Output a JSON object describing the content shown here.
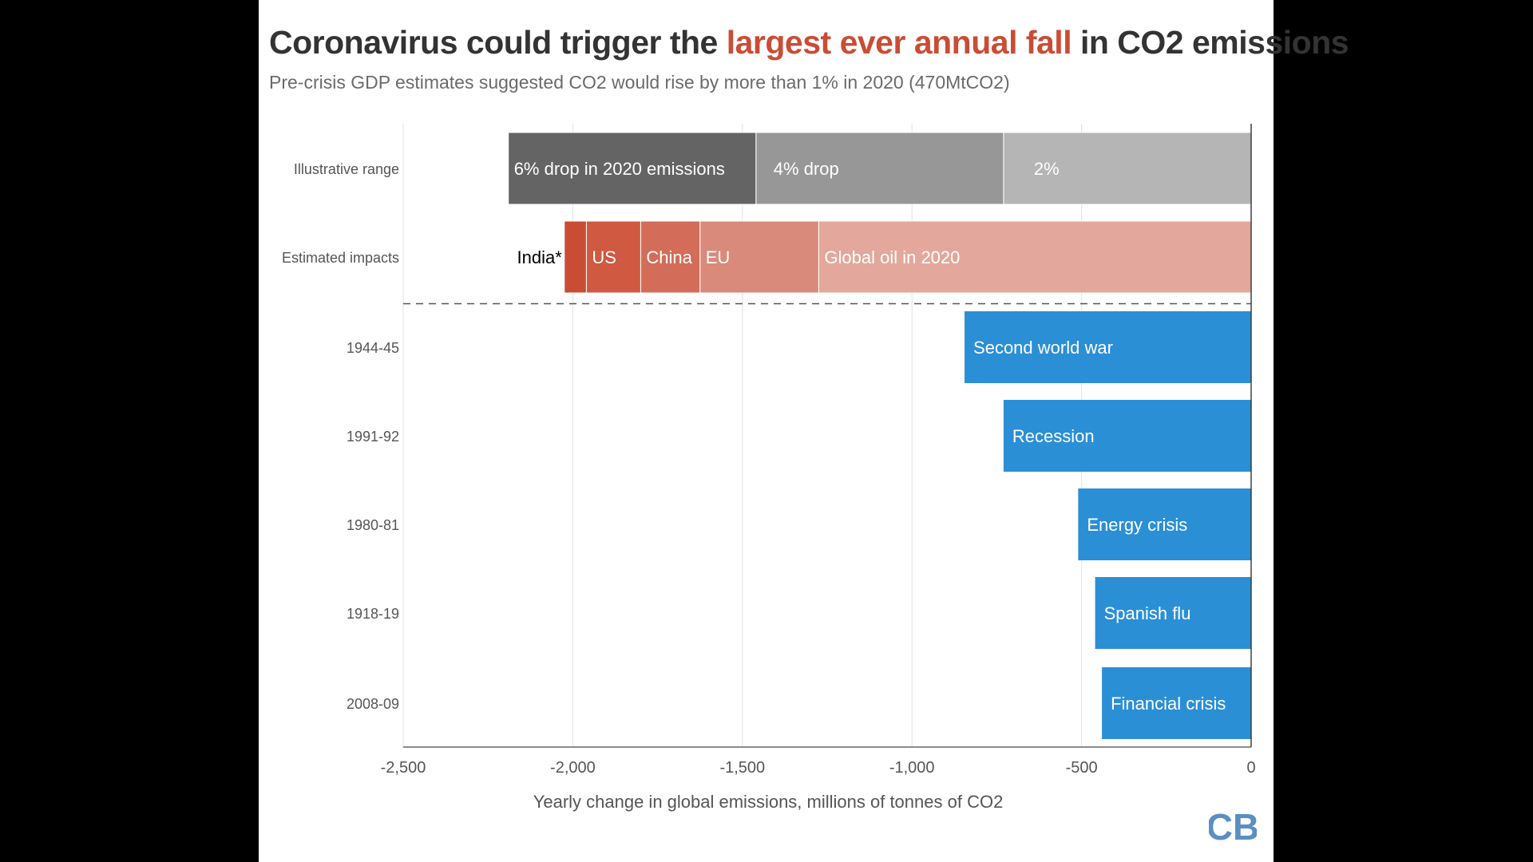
{
  "header": {
    "title_pre": "Coronavirus could trigger the ",
    "title_highlight": "largest ever annual fall",
    "title_post": " in CO2 emissions",
    "subtitle": "Pre-crisis GDP estimates suggested CO2 would rise by more than 1% in 2020 (470MtCO2)"
  },
  "logo": {
    "text": "CB",
    "color": "#5b8fc2"
  },
  "colors": {
    "blue": "#2b8fd6",
    "grid": "#e6e6e6",
    "axis": "#666666",
    "label": "#555555",
    "highlight": "#c94d35"
  },
  "chart_data": {
    "type": "bar",
    "orientation": "horizontal",
    "title": "Coronavirus could trigger the largest ever annual fall in CO2 emissions",
    "subtitle": "Pre-crisis GDP estimates suggested CO2 would rise by more than 1% in 2020 (470MtCO2)",
    "xlabel": "Yearly change in global emissions, millions of tonnes of CO2",
    "ylabel": "",
    "xlim": [
      -2500,
      0
    ],
    "xticks": [
      -2500,
      -2000,
      -1500,
      -1000,
      -500,
      0
    ],
    "xtick_labels": [
      "-2,500",
      "-2,000",
      "-1,500",
      "-1,000",
      "-500",
      "0"
    ],
    "grid": true,
    "rows": [
      {
        "category": "Illustrative range",
        "stacked": true,
        "segments": [
          {
            "label": "2%",
            "start": 0,
            "end": -730,
            "color": "#b5b5b5",
            "text_color": "#ffffff"
          },
          {
            "label": "4% drop",
            "start": -730,
            "end": -1460,
            "color": "#979797",
            "text_color": "#ffffff"
          },
          {
            "label": "6% drop in 2020 emissions",
            "start": -1460,
            "end": -2190,
            "color": "#646464",
            "text_color": "#ffffff"
          }
        ]
      },
      {
        "category": "Estimated impacts",
        "stacked": true,
        "segments": [
          {
            "label": "Global oil in 2020",
            "start": 0,
            "end": -1275,
            "color": "#e3a89b",
            "text_color": "#ffffff"
          },
          {
            "label": "EU",
            "start": -1275,
            "end": -1625,
            "color": "#d98a7a",
            "text_color": "#ffffff"
          },
          {
            "label": "China",
            "start": -1625,
            "end": -1800,
            "color": "#d36d59",
            "text_color": "#ffffff"
          },
          {
            "label": "US",
            "start": -1800,
            "end": -1960,
            "color": "#cf5941",
            "text_color": "#ffffff"
          },
          {
            "label": "India*",
            "start": -1960,
            "end": -2025,
            "color": "#c94d35",
            "text_color": "#000000",
            "label_outside": true
          }
        ]
      },
      {
        "category": "1944-45",
        "label": "Second world war",
        "value": -845
      },
      {
        "category": "1991-92",
        "label": "Recession",
        "value": -730
      },
      {
        "category": "1980-81",
        "label": "Energy crisis",
        "value": -510
      },
      {
        "category": "1918-19",
        "label": "Spanish flu",
        "value": -460
      },
      {
        "category": "2008-09",
        "label": "Financial crisis",
        "value": -440
      }
    ],
    "separator_after_row": 1
  }
}
